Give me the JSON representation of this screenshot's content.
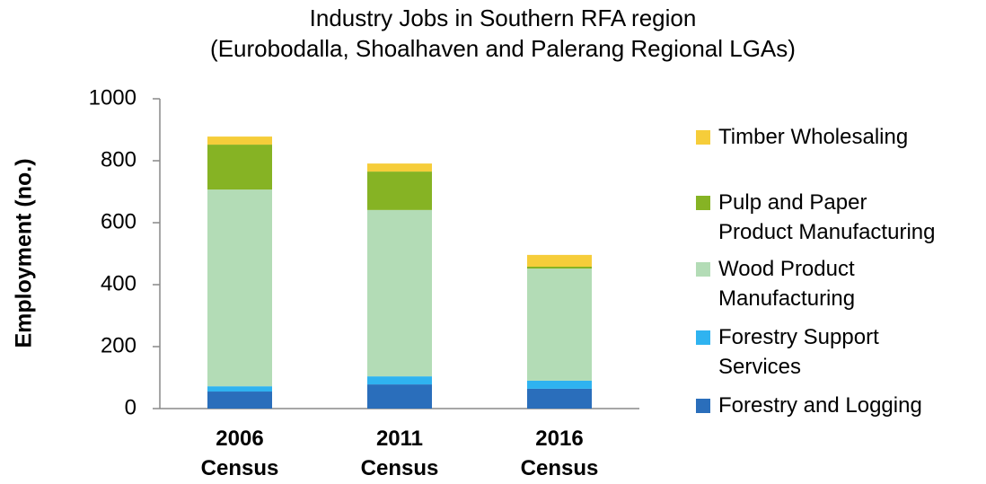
{
  "chart_data": {
    "type": "stacked_bar",
    "title": "Industry Jobs in Southern RFA region",
    "subtitle": "(Eurobodalla, Shoalhaven and Palerang Regional LGAs)",
    "y_label": "Employment (no.)",
    "categories": [
      "2006\nCensus",
      "2011\nCensus",
      "2016\nCensus"
    ],
    "series": [
      {
        "name": "Forestry and Logging",
        "color": "#2a6ebb",
        "values": [
          55,
          78,
          64
        ]
      },
      {
        "name": "Forestry Support\nServices",
        "color": "#2fb3f0",
        "values": [
          17,
          26,
          26
        ]
      },
      {
        "name": "Wood Product\nManufacturing",
        "color": "#b3dcb6",
        "values": [
          635,
          537,
          362
        ]
      },
      {
        "name": "Pulp and Paper\nProduct Manufacturing",
        "color": "#86b324",
        "values": [
          145,
          124,
          6
        ]
      },
      {
        "name": "Timber Wholesaling",
        "color": "#f6cd3a",
        "values": [
          26,
          26,
          38
        ]
      }
    ],
    "ylim": [
      0,
      1000
    ],
    "yticks": [
      0,
      200,
      400,
      600,
      800,
      1000
    ],
    "grid": false,
    "legend": "right"
  }
}
